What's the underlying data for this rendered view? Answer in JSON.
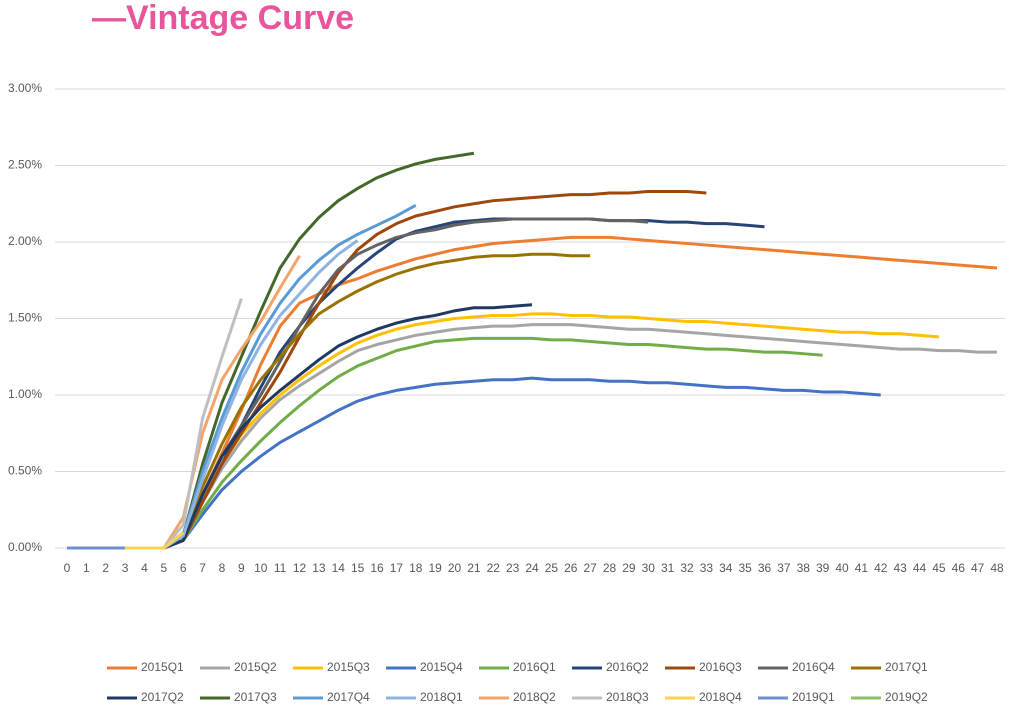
{
  "chart_data": {
    "type": "line",
    "title": "—Vintage Curve",
    "x": [
      0,
      1,
      2,
      3,
      4,
      5,
      6,
      7,
      8,
      9,
      10,
      11,
      12,
      13,
      14,
      15,
      16,
      17,
      18,
      19,
      20,
      21,
      22,
      23,
      24,
      25,
      26,
      27,
      28,
      29,
      30,
      31,
      32,
      33,
      34,
      35,
      36,
      37,
      38,
      39,
      40,
      41,
      42,
      43,
      44,
      45,
      46,
      47,
      48
    ],
    "xlim": [
      0,
      48
    ],
    "ylim": [
      0,
      3
    ],
    "yticks": [
      {
        "value": 0,
        "label": "0.00%"
      },
      {
        "value": 0.5,
        "label": "0.50%"
      },
      {
        "value": 1,
        "label": "1.00%"
      },
      {
        "value": 1.5,
        "label": "1.50%"
      },
      {
        "value": 2,
        "label": "2.00%"
      },
      {
        "value": 2.5,
        "label": "2.50%"
      },
      {
        "value": 3,
        "label": "3.00%"
      }
    ],
    "grid": true,
    "legend": "bottom",
    "series": [
      {
        "name": "2015Q1",
        "color": "#ed7d31",
        "values": [
          0,
          0,
          0,
          0,
          0,
          0,
          0.1,
          0.35,
          0.62,
          0.9,
          1.2,
          1.45,
          1.6,
          1.66,
          1.72,
          1.76,
          1.81,
          1.85,
          1.89,
          1.92,
          1.95,
          1.97,
          1.99,
          2.0,
          2.01,
          2.02,
          2.03,
          2.03,
          2.03,
          2.02,
          2.01,
          2.0,
          1.99,
          1.98,
          1.97,
          1.96,
          1.95,
          1.94,
          1.93,
          1.92,
          1.91,
          1.9,
          1.89,
          1.88,
          1.87,
          1.86,
          1.85,
          1.84,
          1.83
        ]
      },
      {
        "name": "2015Q2",
        "color": "#a5a5a5",
        "values": [
          0,
          0,
          0,
          0,
          0,
          0,
          0.08,
          0.3,
          0.52,
          0.7,
          0.85,
          0.97,
          1.06,
          1.14,
          1.22,
          1.29,
          1.33,
          1.36,
          1.39,
          1.41,
          1.43,
          1.44,
          1.45,
          1.45,
          1.46,
          1.46,
          1.46,
          1.45,
          1.44,
          1.43,
          1.43,
          1.42,
          1.41,
          1.4,
          1.39,
          1.38,
          1.37,
          1.36,
          1.35,
          1.34,
          1.33,
          1.32,
          1.31,
          1.3,
          1.3,
          1.29,
          1.29,
          1.28,
          1.28
        ]
      },
      {
        "name": "2015Q3",
        "color": "#ffc000",
        "values": [
          0,
          0,
          0,
          0,
          0,
          0,
          0.08,
          0.32,
          0.55,
          0.74,
          0.88,
          1.0,
          1.1,
          1.19,
          1.27,
          1.34,
          1.39,
          1.43,
          1.46,
          1.48,
          1.5,
          1.51,
          1.52,
          1.52,
          1.53,
          1.53,
          1.52,
          1.52,
          1.51,
          1.51,
          1.5,
          1.49,
          1.48,
          1.48,
          1.47,
          1.46,
          1.45,
          1.44,
          1.43,
          1.42,
          1.41,
          1.41,
          1.4,
          1.4,
          1.39,
          1.38,
          null,
          null,
          null
        ]
      },
      {
        "name": "2015Q4",
        "color": "#4472c4",
        "values": [
          0,
          0,
          0,
          0,
          0,
          0,
          0.05,
          0.22,
          0.38,
          0.5,
          0.6,
          0.69,
          0.76,
          0.83,
          0.9,
          0.96,
          1.0,
          1.03,
          1.05,
          1.07,
          1.08,
          1.09,
          1.1,
          1.1,
          1.11,
          1.1,
          1.1,
          1.1,
          1.09,
          1.09,
          1.08,
          1.08,
          1.07,
          1.06,
          1.05,
          1.05,
          1.04,
          1.03,
          1.03,
          1.02,
          1.02,
          1.01,
          1.0,
          null,
          null,
          null,
          null,
          null,
          null
        ]
      },
      {
        "name": "2016Q1",
        "color": "#70ad47",
        "values": [
          0,
          0,
          0,
          0,
          0,
          0,
          0.05,
          0.25,
          0.43,
          0.57,
          0.7,
          0.82,
          0.93,
          1.03,
          1.12,
          1.19,
          1.24,
          1.29,
          1.32,
          1.35,
          1.36,
          1.37,
          1.37,
          1.37,
          1.37,
          1.36,
          1.36,
          1.35,
          1.34,
          1.33,
          1.33,
          1.32,
          1.31,
          1.3,
          1.3,
          1.29,
          1.28,
          1.28,
          1.27,
          1.26,
          null,
          null,
          null,
          null,
          null,
          null,
          null,
          null,
          null
        ]
      },
      {
        "name": "2016Q2",
        "color": "#264478",
        "values": [
          0,
          0,
          0,
          0,
          0,
          0,
          0.05,
          0.3,
          0.55,
          0.8,
          1.05,
          1.28,
          1.45,
          1.6,
          1.72,
          1.83,
          1.93,
          2.02,
          2.07,
          2.1,
          2.13,
          2.14,
          2.15,
          2.15,
          2.15,
          2.15,
          2.15,
          2.15,
          2.14,
          2.14,
          2.14,
          2.13,
          2.13,
          2.12,
          2.12,
          2.11,
          2.1,
          null,
          null,
          null,
          null,
          null,
          null,
          null,
          null,
          null,
          null,
          null,
          null
        ]
      },
      {
        "name": "2016Q3",
        "color": "#9e480e",
        "values": [
          0,
          0,
          0,
          0,
          0,
          0,
          0.05,
          0.3,
          0.55,
          0.75,
          0.95,
          1.15,
          1.38,
          1.6,
          1.8,
          1.95,
          2.05,
          2.12,
          2.17,
          2.2,
          2.23,
          2.25,
          2.27,
          2.28,
          2.29,
          2.3,
          2.31,
          2.31,
          2.32,
          2.32,
          2.33,
          2.33,
          2.33,
          2.32,
          null,
          null,
          null,
          null,
          null,
          null,
          null,
          null,
          null,
          null,
          null,
          null,
          null,
          null,
          null
        ]
      },
      {
        "name": "2016Q4",
        "color": "#636363",
        "values": [
          0,
          0,
          0,
          0,
          0,
          0,
          0.05,
          0.35,
          0.6,
          0.8,
          1.0,
          1.22,
          1.45,
          1.66,
          1.82,
          1.92,
          1.98,
          2.03,
          2.06,
          2.08,
          2.11,
          2.13,
          2.14,
          2.15,
          2.15,
          2.15,
          2.15,
          2.15,
          2.14,
          2.14,
          2.13,
          null,
          null,
          null,
          null,
          null,
          null,
          null,
          null,
          null,
          null,
          null,
          null,
          null,
          null,
          null,
          null,
          null,
          null
        ]
      },
      {
        "name": "2017Q1",
        "color": "#997300",
        "values": [
          0,
          0,
          0,
          0,
          0,
          0,
          0.05,
          0.4,
          0.68,
          0.92,
          1.1,
          1.25,
          1.4,
          1.53,
          1.61,
          1.68,
          1.74,
          1.79,
          1.83,
          1.86,
          1.88,
          1.9,
          1.91,
          1.91,
          1.92,
          1.92,
          1.91,
          1.91,
          null,
          null,
          null,
          null,
          null,
          null,
          null,
          null,
          null,
          null,
          null,
          null,
          null,
          null,
          null,
          null,
          null,
          null,
          null,
          null,
          null
        ]
      },
      {
        "name": "2017Q2",
        "color": "#203864",
        "values": [
          0,
          0,
          0,
          0,
          0,
          0,
          0.05,
          0.35,
          0.6,
          0.78,
          0.92,
          1.03,
          1.13,
          1.23,
          1.32,
          1.38,
          1.43,
          1.47,
          1.5,
          1.52,
          1.55,
          1.57,
          1.57,
          1.58,
          1.59,
          null,
          null,
          null,
          null,
          null,
          null,
          null,
          null,
          null,
          null,
          null,
          null,
          null,
          null,
          null,
          null,
          null,
          null,
          null,
          null,
          null,
          null,
          null,
          null
        ]
      },
      {
        "name": "2017Q3",
        "color": "#43682b",
        "values": [
          0,
          0,
          0,
          0,
          0,
          0,
          0.08,
          0.55,
          0.95,
          1.25,
          1.55,
          1.83,
          2.02,
          2.16,
          2.27,
          2.35,
          2.42,
          2.47,
          2.51,
          2.54,
          2.56,
          2.58,
          null,
          null,
          null,
          null,
          null,
          null,
          null,
          null,
          null,
          null,
          null,
          null,
          null,
          null,
          null,
          null,
          null,
          null,
          null,
          null,
          null,
          null,
          null,
          null,
          null,
          null,
          null
        ]
      },
      {
        "name": "2017Q4",
        "color": "#5b9bd5",
        "values": [
          0,
          0,
          0,
          0,
          0,
          0,
          0.08,
          0.5,
          0.85,
          1.15,
          1.4,
          1.6,
          1.76,
          1.88,
          1.98,
          2.05,
          2.11,
          2.17,
          2.24,
          null,
          null,
          null,
          null,
          null,
          null,
          null,
          null,
          null,
          null,
          null,
          null,
          null,
          null,
          null,
          null,
          null,
          null,
          null,
          null,
          null,
          null,
          null,
          null,
          null,
          null,
          null,
          null,
          null,
          null
        ]
      },
      {
        "name": "2018Q1",
        "color": "#8fb4e3",
        "values": [
          0,
          0,
          0,
          0,
          0,
          0,
          0.08,
          0.45,
          0.8,
          1.1,
          1.33,
          1.52,
          1.66,
          1.8,
          1.92,
          2.01,
          null,
          null,
          null,
          null,
          null,
          null,
          null,
          null,
          null,
          null,
          null,
          null,
          null,
          null,
          null,
          null,
          null,
          null,
          null,
          null,
          null,
          null,
          null,
          null,
          null,
          null,
          null,
          null,
          null,
          null,
          null,
          null,
          null
        ]
      },
      {
        "name": "2018Q2",
        "color": "#f4a46b",
        "values": [
          0,
          0,
          0,
          0,
          0,
          0,
          0.2,
          0.75,
          1.1,
          1.3,
          1.48,
          1.7,
          1.91,
          null,
          null,
          null,
          null,
          null,
          null,
          null,
          null,
          null,
          null,
          null,
          null,
          null,
          null,
          null,
          null,
          null,
          null,
          null,
          null,
          null,
          null,
          null,
          null,
          null,
          null,
          null,
          null,
          null,
          null,
          null,
          null,
          null,
          null,
          null,
          null
        ]
      },
      {
        "name": "2018Q3",
        "color": "#bfbfbf",
        "values": [
          0,
          0,
          0,
          0,
          0,
          0,
          0.15,
          0.85,
          1.25,
          1.63,
          null,
          null,
          null,
          null,
          null,
          null,
          null,
          null,
          null,
          null,
          null,
          null,
          null,
          null,
          null,
          null,
          null,
          null,
          null,
          null,
          null,
          null,
          null,
          null,
          null,
          null,
          null,
          null,
          null,
          null,
          null,
          null,
          null,
          null,
          null,
          null,
          null,
          null,
          null
        ]
      },
      {
        "name": "2018Q4",
        "color": "#ffd34d",
        "values": [
          0,
          0,
          0,
          0,
          0,
          0,
          0.1,
          null,
          null,
          null,
          null,
          null,
          null,
          null,
          null,
          null,
          null,
          null,
          null,
          null,
          null,
          null,
          null,
          null,
          null,
          null,
          null,
          null,
          null,
          null,
          null,
          null,
          null,
          null,
          null,
          null,
          null,
          null,
          null,
          null,
          null,
          null,
          null,
          null,
          null,
          null,
          null,
          null,
          null
        ]
      },
      {
        "name": "2019Q1",
        "color": "#6f8fd0",
        "values": [
          0,
          0,
          0,
          0,
          null,
          null,
          null,
          null,
          null,
          null,
          null,
          null,
          null,
          null,
          null,
          null,
          null,
          null,
          null,
          null,
          null,
          null,
          null,
          null,
          null,
          null,
          null,
          null,
          null,
          null,
          null,
          null,
          null,
          null,
          null,
          null,
          null,
          null,
          null,
          null,
          null,
          null,
          null,
          null,
          null,
          null,
          null,
          null,
          null
        ]
      },
      {
        "name": "2019Q2",
        "color": "#8cc168",
        "values": [
          0,
          null,
          null,
          null,
          null,
          null,
          null,
          null,
          null,
          null,
          null,
          null,
          null,
          null,
          null,
          null,
          null,
          null,
          null,
          null,
          null,
          null,
          null,
          null,
          null,
          null,
          null,
          null,
          null,
          null,
          null,
          null,
          null,
          null,
          null,
          null,
          null,
          null,
          null,
          null,
          null,
          null,
          null,
          null,
          null,
          null,
          null,
          null,
          null
        ]
      }
    ]
  }
}
